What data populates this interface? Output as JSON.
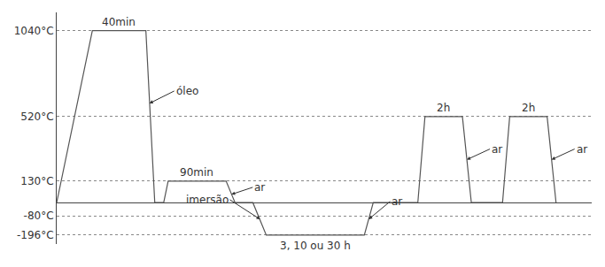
{
  "chart_data": {
    "type": "line",
    "color": "#555555",
    "x": [
      0,
      40,
      100,
      110,
      120,
      125,
      190,
      200,
      220,
      235,
      345,
      355,
      405,
      413,
      455,
      465,
      500,
      508,
      550,
      560
    ],
    "values": [
      0,
      1040,
      1040,
      0,
      0,
      130,
      130,
      0,
      0,
      -196,
      -196,
      0,
      0,
      520,
      520,
      0,
      0,
      520,
      520,
      0
    ],
    "xlim": [
      0,
      600
    ],
    "ylim": [
      -250,
      1150
    ],
    "yticks": [
      {
        "value": 1040,
        "label": "1040°C"
      },
      {
        "value": 520,
        "label": "520°C"
      },
      {
        "value": 130,
        "label": "130°C"
      },
      {
        "value": -80,
        "label": "-80°C"
      },
      {
        "value": -196,
        "label": "-196°C"
      }
    ],
    "grid": true,
    "tick_labels": "y",
    "plateau_labels": [
      {
        "text": "40min",
        "x": 70,
        "y": 1040
      },
      {
        "text": "90min",
        "x": 157,
        "y": 130
      },
      {
        "text": "3, 10 ou 30 h",
        "x": 290,
        "y": -196
      },
      {
        "text": "2h",
        "x": 434,
        "y": 520
      },
      {
        "text": "2h",
        "x": 529,
        "y": 520
      }
    ],
    "annotations": [
      {
        "text": "óleo",
        "x": 104,
        "y": 600
      },
      {
        "text": "ar",
        "x": 196,
        "y": 50
      },
      {
        "text": "imersão",
        "x": 228,
        "y": -100
      },
      {
        "text": "ar",
        "x": 350,
        "y": -100
      },
      {
        "text": "ar",
        "x": 460,
        "y": 260
      },
      {
        "text": "ar",
        "x": 555,
        "y": 260
      }
    ]
  }
}
